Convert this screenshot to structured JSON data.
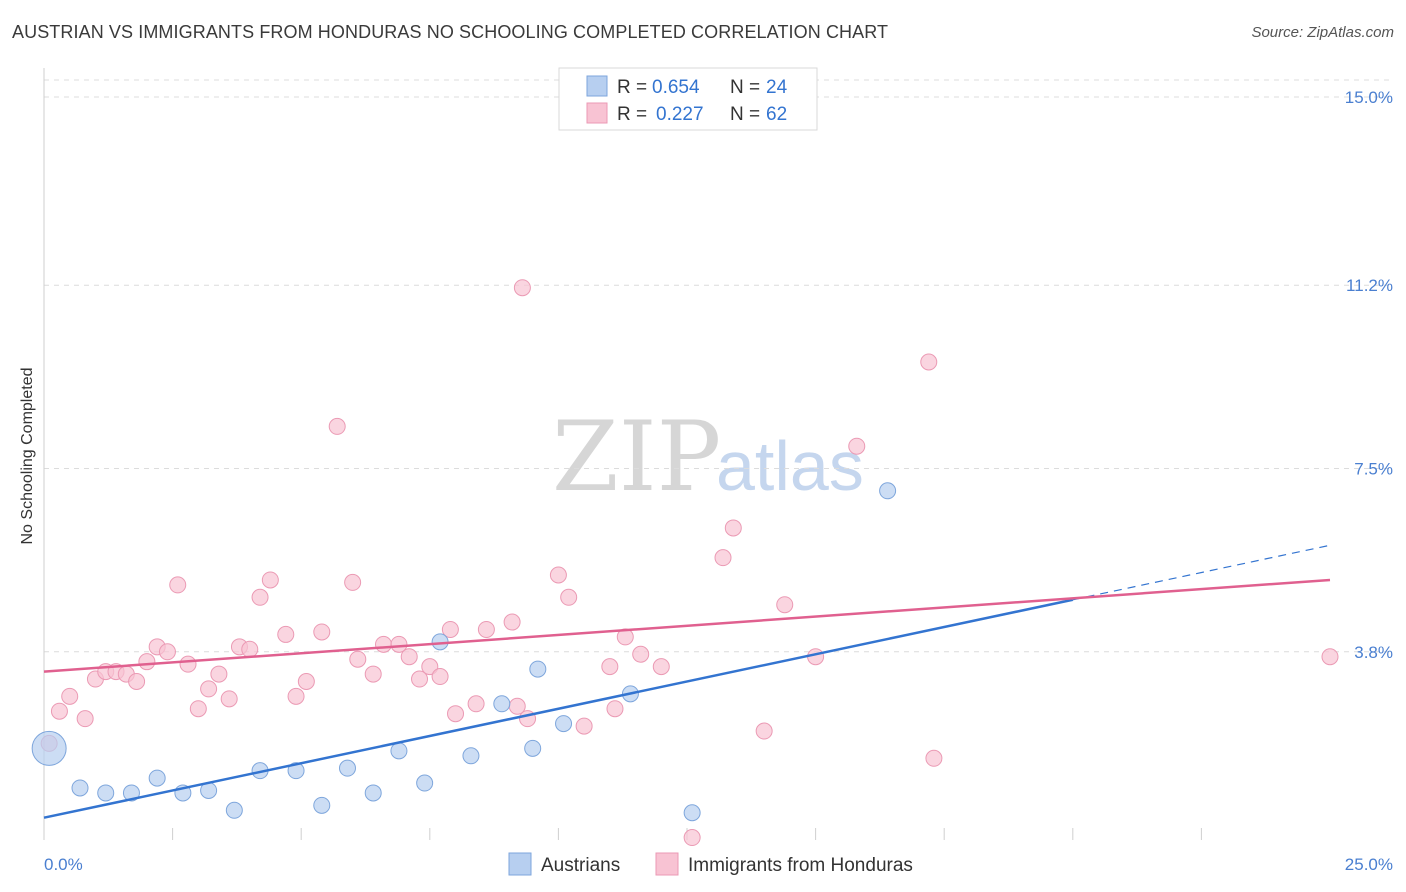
{
  "title": "AUSTRIAN VS IMMIGRANTS FROM HONDURAS NO SCHOOLING COMPLETED CORRELATION CHART",
  "source": "Source: ZipAtlas.com",
  "watermark": {
    "zip": "ZIP",
    "atlas": "atlas"
  },
  "chart_data": {
    "type": "scatter",
    "xlabel": "",
    "ylabel": "No Schooling Completed",
    "xlim": [
      0,
      25
    ],
    "ylim": [
      0,
      15
    ],
    "x_tick_labels": {
      "min": "0.0%",
      "max": "25.0%"
    },
    "y_ticks": [
      {
        "value": 3.8,
        "label": "3.8%"
      },
      {
        "value": 7.5,
        "label": "7.5%"
      },
      {
        "value": 11.2,
        "label": "11.2%"
      },
      {
        "value": 15.0,
        "label": "15.0%"
      }
    ],
    "legend_stats": [
      {
        "r_label": "R =",
        "r_value": "0.654",
        "n_label": "N =",
        "n_value": "24"
      },
      {
        "r_label": "R =",
        "r_value": "0.227",
        "n_label": "N =",
        "n_value": "62"
      }
    ],
    "colors": {
      "blue_fill": "#b7cff0",
      "blue_stroke": "#7ea6dc",
      "blue_line": "#3374d0",
      "pink_fill": "#f8c3d3",
      "pink_stroke": "#eb9ab4",
      "pink_line": "#e0608f",
      "tick": "#4a7fd0",
      "grid": "#dcdcdc"
    },
    "series": [
      {
        "name": "Austrians",
        "color": "blue",
        "trend": {
          "x0": 0,
          "y0": 0.45,
          "x1": 20,
          "y1": 4.85,
          "dash_to_x": 25,
          "dash_to_y": 5.95
        },
        "points": [
          {
            "x": 0.1,
            "y": 1.85,
            "big": true
          },
          {
            "x": 0.7,
            "y": 1.05
          },
          {
            "x": 1.2,
            "y": 0.95
          },
          {
            "x": 1.7,
            "y": 0.95
          },
          {
            "x": 2.2,
            "y": 1.25
          },
          {
            "x": 2.7,
            "y": 0.95
          },
          {
            "x": 3.2,
            "y": 1.0
          },
          {
            "x": 3.7,
            "y": 0.6
          },
          {
            "x": 4.2,
            "y": 1.4
          },
          {
            "x": 4.9,
            "y": 1.4
          },
          {
            "x": 5.4,
            "y": 0.7
          },
          {
            "x": 5.9,
            "y": 1.45
          },
          {
            "x": 6.4,
            "y": 0.95
          },
          {
            "x": 6.9,
            "y": 1.8
          },
          {
            "x": 7.4,
            "y": 1.15
          },
          {
            "x": 7.7,
            "y": 4.0
          },
          {
            "x": 8.3,
            "y": 1.7
          },
          {
            "x": 8.9,
            "y": 2.75
          },
          {
            "x": 9.5,
            "y": 1.85
          },
          {
            "x": 9.6,
            "y": 3.45
          },
          {
            "x": 10.1,
            "y": 2.35
          },
          {
            "x": 11.4,
            "y": 2.95
          },
          {
            "x": 12.6,
            "y": 0.55
          },
          {
            "x": 16.4,
            "y": 7.05
          }
        ]
      },
      {
        "name": "Immigrants from Honduras",
        "color": "pink",
        "trend": {
          "x0": 0,
          "y0": 3.4,
          "x1": 25,
          "y1": 5.25
        },
        "points": [
          {
            "x": 0.1,
            "y": 1.95
          },
          {
            "x": 0.3,
            "y": 2.6
          },
          {
            "x": 0.5,
            "y": 2.9
          },
          {
            "x": 0.8,
            "y": 2.45
          },
          {
            "x": 1.0,
            "y": 3.25
          },
          {
            "x": 1.2,
            "y": 3.4
          },
          {
            "x": 1.4,
            "y": 3.4
          },
          {
            "x": 1.6,
            "y": 3.35
          },
          {
            "x": 1.8,
            "y": 3.2
          },
          {
            "x": 2.0,
            "y": 3.6
          },
          {
            "x": 2.2,
            "y": 3.9
          },
          {
            "x": 2.4,
            "y": 3.8
          },
          {
            "x": 2.6,
            "y": 5.15
          },
          {
            "x": 2.8,
            "y": 3.55
          },
          {
            "x": 3.0,
            "y": 2.65
          },
          {
            "x": 3.2,
            "y": 3.05
          },
          {
            "x": 3.4,
            "y": 3.35
          },
          {
            "x": 3.6,
            "y": 2.85
          },
          {
            "x": 3.8,
            "y": 3.9
          },
          {
            "x": 4.0,
            "y": 3.85
          },
          {
            "x": 4.2,
            "y": 4.9
          },
          {
            "x": 4.4,
            "y": 5.25
          },
          {
            "x": 4.7,
            "y": 4.15
          },
          {
            "x": 4.9,
            "y": 2.9
          },
          {
            "x": 5.1,
            "y": 3.2
          },
          {
            "x": 5.4,
            "y": 4.2
          },
          {
            "x": 5.7,
            "y": 8.35
          },
          {
            "x": 6.0,
            "y": 5.2
          },
          {
            "x": 6.1,
            "y": 3.65
          },
          {
            "x": 6.4,
            "y": 3.35
          },
          {
            "x": 6.6,
            "y": 3.95
          },
          {
            "x": 6.9,
            "y": 3.95
          },
          {
            "x": 7.1,
            "y": 3.7
          },
          {
            "x": 7.3,
            "y": 3.25
          },
          {
            "x": 7.5,
            "y": 3.5
          },
          {
            "x": 7.7,
            "y": 3.3
          },
          {
            "x": 7.9,
            "y": 4.25
          },
          {
            "x": 8.0,
            "y": 2.55
          },
          {
            "x": 8.6,
            "y": 4.25
          },
          {
            "x": 8.4,
            "y": 2.75
          },
          {
            "x": 9.1,
            "y": 4.4
          },
          {
            "x": 9.2,
            "y": 2.7
          },
          {
            "x": 9.4,
            "y": 2.45
          },
          {
            "x": 9.3,
            "y": 11.15
          },
          {
            "x": 10.0,
            "y": 5.35
          },
          {
            "x": 10.2,
            "y": 4.9
          },
          {
            "x": 10.5,
            "y": 2.3
          },
          {
            "x": 11.0,
            "y": 3.5
          },
          {
            "x": 11.1,
            "y": 2.65
          },
          {
            "x": 11.3,
            "y": 4.1
          },
          {
            "x": 11.6,
            "y": 3.75
          },
          {
            "x": 12.0,
            "y": 3.5
          },
          {
            "x": 12.6,
            "y": 0.05
          },
          {
            "x": 13.2,
            "y": 5.7
          },
          {
            "x": 13.4,
            "y": 6.3
          },
          {
            "x": 14.0,
            "y": 2.2
          },
          {
            "x": 14.4,
            "y": 4.75
          },
          {
            "x": 15.0,
            "y": 3.7
          },
          {
            "x": 15.8,
            "y": 7.95
          },
          {
            "x": 17.2,
            "y": 9.65
          },
          {
            "x": 17.3,
            "y": 1.65
          },
          {
            "x": 25.0,
            "y": 3.7
          }
        ]
      }
    ]
  }
}
